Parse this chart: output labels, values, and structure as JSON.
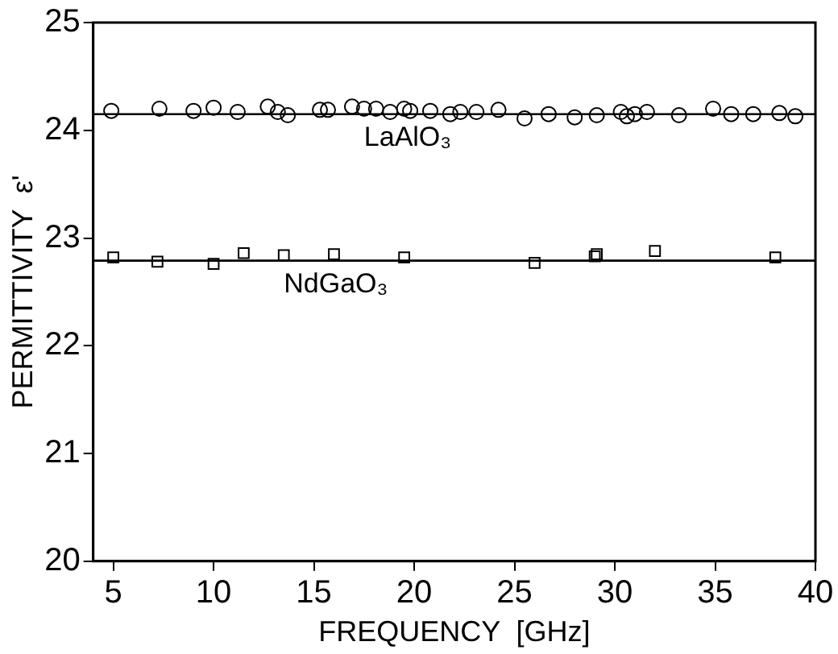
{
  "chart_data": {
    "type": "scatter",
    "xlabel": "FREQUENCY  [GHz]",
    "ylabel": "PERMITTIVITY  ε'",
    "xlim": [
      4,
      40
    ],
    "ylim": [
      20,
      25
    ],
    "xticks": [
      5,
      10,
      15,
      20,
      25,
      30,
      35,
      40
    ],
    "yticks": [
      20,
      21,
      22,
      23,
      24,
      25
    ],
    "grid": false,
    "legend": false,
    "series": [
      {
        "name": "LaAlO₃",
        "color": "#000000",
        "marker": "circle",
        "x": [
          4.9,
          7.3,
          9.0,
          10.0,
          11.2,
          12.7,
          13.2,
          13.7,
          15.3,
          15.7,
          16.9,
          17.5,
          18.1,
          18.8,
          19.5,
          19.8,
          20.8,
          21.8,
          22.3,
          23.1,
          24.2,
          25.5,
          26.7,
          28.0,
          29.1,
          30.3,
          30.6,
          31.0,
          31.6,
          33.2,
          34.9,
          35.8,
          36.9,
          38.2,
          39.0
        ],
        "values": [
          24.18,
          24.2,
          24.18,
          24.21,
          24.17,
          24.22,
          24.17,
          24.14,
          24.19,
          24.19,
          24.22,
          24.2,
          24.2,
          24.17,
          24.2,
          24.18,
          24.18,
          24.15,
          24.17,
          24.17,
          24.19,
          24.11,
          24.15,
          24.12,
          24.14,
          24.17,
          24.13,
          24.15,
          24.17,
          24.14,
          24.2,
          24.15,
          24.15,
          24.16,
          24.13
        ]
      },
      {
        "name": "NdGaO₃",
        "color": "#000000",
        "marker": "square",
        "x": [
          5.0,
          7.2,
          10.0,
          11.5,
          13.5,
          16.0,
          19.5,
          26.0,
          29.0,
          29.1,
          32.0,
          38.0
        ],
        "values": [
          22.82,
          22.78,
          22.76,
          22.86,
          22.84,
          22.85,
          22.82,
          22.77,
          22.83,
          22.85,
          22.88,
          22.82
        ]
      },
      {
        "type": "line",
        "color": "#000000",
        "marker": "none",
        "x": [
          4,
          40
        ],
        "values": [
          24.15,
          24.15
        ]
      },
      {
        "type": "line",
        "color": "#000000",
        "marker": "none",
        "x": [
          4,
          40
        ],
        "values": [
          22.79,
          22.79
        ]
      }
    ]
  }
}
